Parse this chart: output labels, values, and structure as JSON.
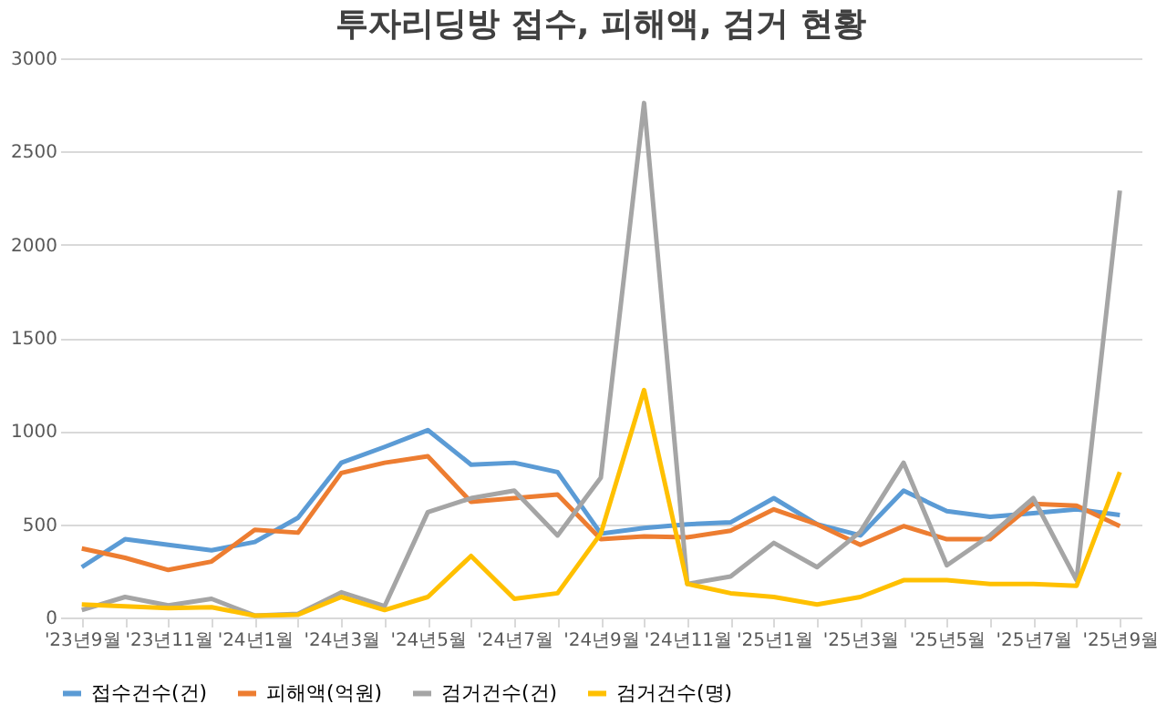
{
  "chart_data": {
    "type": "line",
    "title": "투자리딩방 접수, 피해액, 검거 현황",
    "categories": [
      "'23년9월",
      null,
      "'23년11월",
      null,
      "'24년1월",
      null,
      "'24년3월",
      null,
      "'24년5월",
      null,
      "'24년7월",
      null,
      "'24년9월",
      null,
      "'24년11월",
      null,
      "'25년1월",
      null,
      "'25년3월",
      null,
      "'25년5월",
      null,
      "'25년7월",
      null,
      "'25년9월"
    ],
    "series": [
      {
        "name": "접수건수(건)",
        "color": "#5b9bd5",
        "values": [
          270,
          420,
          390,
          360,
          405,
          535,
          830,
          915,
          1005,
          820,
          830,
          780,
          450,
          480,
          500,
          510,
          640,
          500,
          440,
          680,
          570,
          540,
          560,
          580,
          550
        ]
      },
      {
        "name": "피해액(억원)",
        "color": "#ed7d31",
        "values": [
          370,
          320,
          255,
          300,
          470,
          455,
          775,
          830,
          865,
          620,
          640,
          660,
          420,
          435,
          430,
          465,
          580,
          500,
          390,
          490,
          420,
          420,
          610,
          600,
          490
        ]
      },
      {
        "name": "검거건수(건)",
        "color": "#a5a5a5",
        "values": [
          40,
          110,
          65,
          100,
          10,
          20,
          135,
          60,
          565,
          640,
          680,
          440,
          750,
          2760,
          180,
          220,
          400,
          270,
          460,
          830,
          280,
          440,
          640,
          200,
          2290
        ]
      },
      {
        "name": "검거건수(명)",
        "color": "#ffc000",
        "values": [
          70,
          60,
          50,
          55,
          10,
          15,
          110,
          40,
          110,
          330,
          100,
          130,
          450,
          1220,
          180,
          130,
          110,
          70,
          110,
          200,
          200,
          180,
          180,
          170,
          780
        ]
      }
    ],
    "ylim": [
      0,
      3000
    ],
    "yticks": [
      0,
      500,
      1000,
      1500,
      2000,
      2500,
      3000
    ],
    "grid": "y",
    "legend": "bottom",
    "marker": "none",
    "line_style": "solid"
  }
}
